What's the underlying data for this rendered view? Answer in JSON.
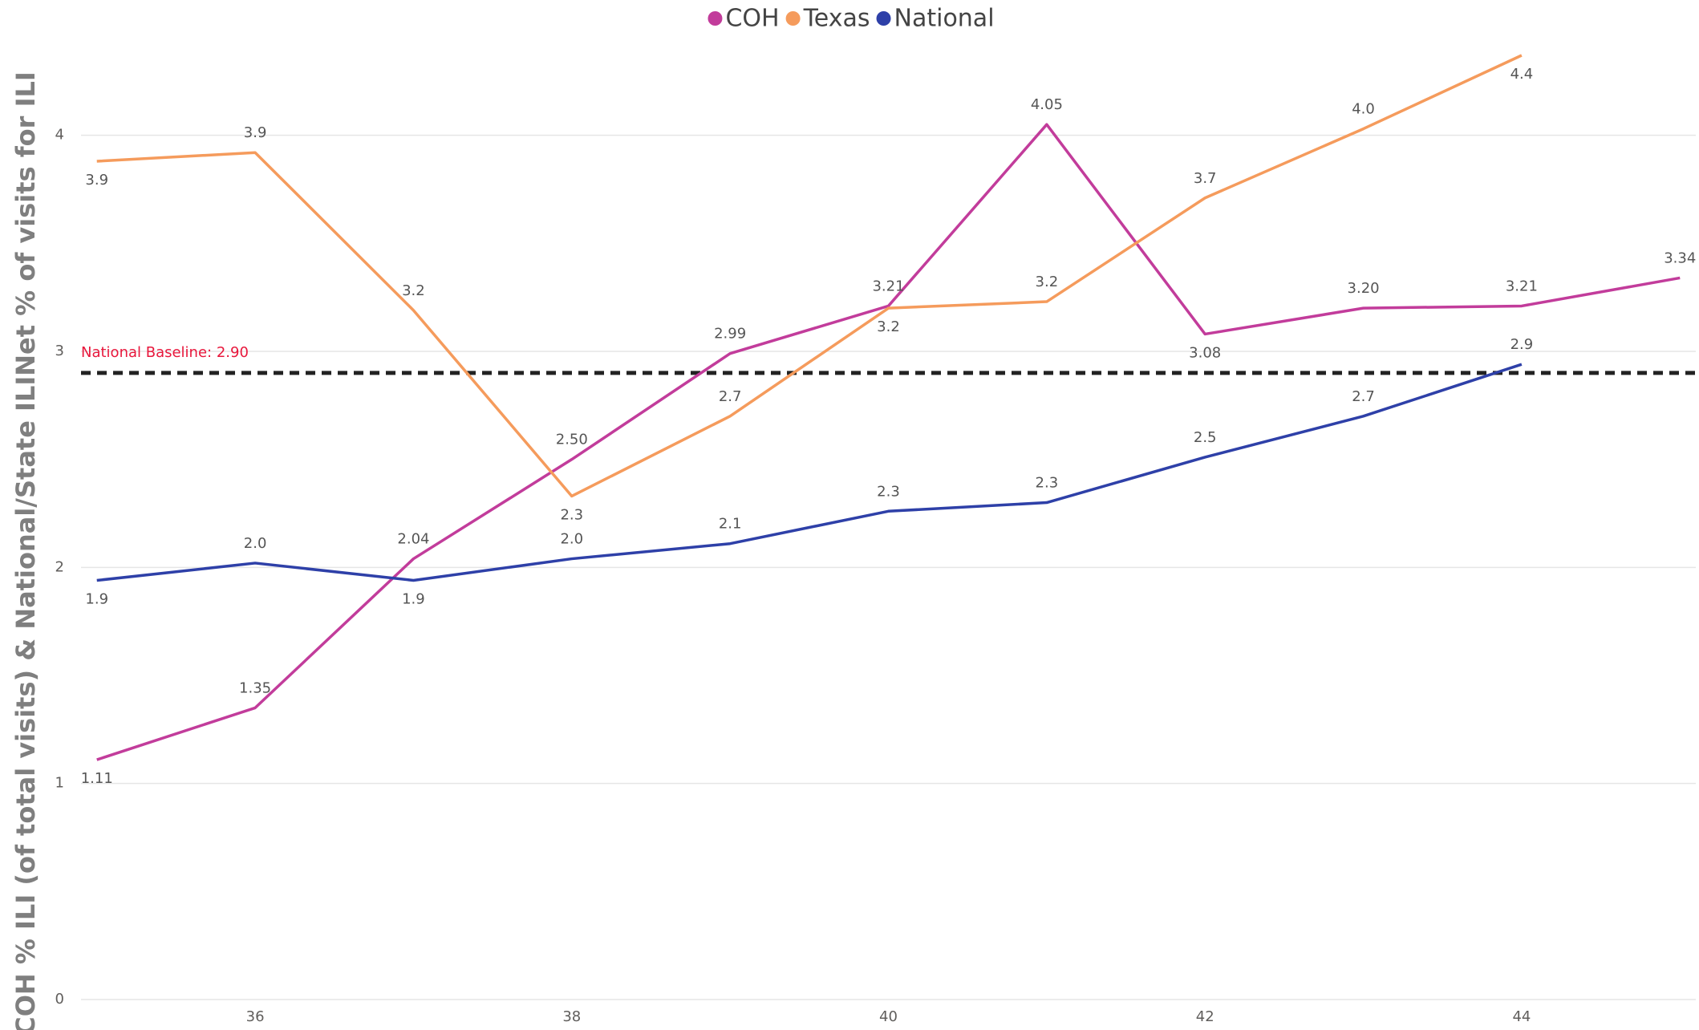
{
  "chart_data": {
    "type": "line",
    "y_label": "COH % ILI (of total visits) & National/State ILINet % of visits for ILI",
    "x": [
      35,
      36,
      37,
      38,
      39,
      40,
      41,
      42,
      43,
      44,
      45
    ],
    "xlim": [
      34.9,
      45.1
    ],
    "xticks": [
      36,
      38,
      40,
      42,
      44
    ],
    "ylim": [
      0,
      4.5
    ],
    "yticks": [
      0,
      1,
      2,
      3,
      4
    ],
    "grid": true,
    "legend": "top",
    "series": [
      {
        "name": "COH",
        "color": "#c23c9b",
        "values": [
          1.11,
          1.35,
          2.04,
          2.5,
          2.99,
          3.21,
          4.05,
          3.08,
          3.2,
          3.21,
          3.34
        ],
        "value_labels": [
          "1.11",
          "1.35",
          "2.04",
          "2.50",
          "2.99",
          "3.21",
          "4.05",
          "3.08",
          "3.20",
          "3.21",
          "3.34"
        ]
      },
      {
        "name": "Texas",
        "color": "#f59b5c",
        "values": [
          3.88,
          3.92,
          3.19,
          2.33,
          2.7,
          3.2,
          3.23,
          3.71,
          4.03,
          4.37,
          null
        ],
        "value_labels": [
          "3.9",
          "3.9",
          "3.2",
          "2.3",
          "2.7",
          "3.2",
          "3.2",
          "3.7",
          "4.0",
          "4.4",
          null
        ]
      },
      {
        "name": "National",
        "color": "#2e40a8",
        "values": [
          1.94,
          2.02,
          1.94,
          2.04,
          2.11,
          2.26,
          2.3,
          2.51,
          2.7,
          2.94,
          null
        ],
        "value_labels": [
          "1.9",
          "2.0",
          "1.9",
          "2.0",
          "2.1",
          "2.3",
          "2.3",
          "2.5",
          "2.7",
          "2.9",
          null
        ]
      }
    ],
    "baseline": {
      "value": 2.9,
      "label": "National Baseline: 2.90",
      "color": "#222222",
      "label_color": "#e8173c"
    }
  }
}
